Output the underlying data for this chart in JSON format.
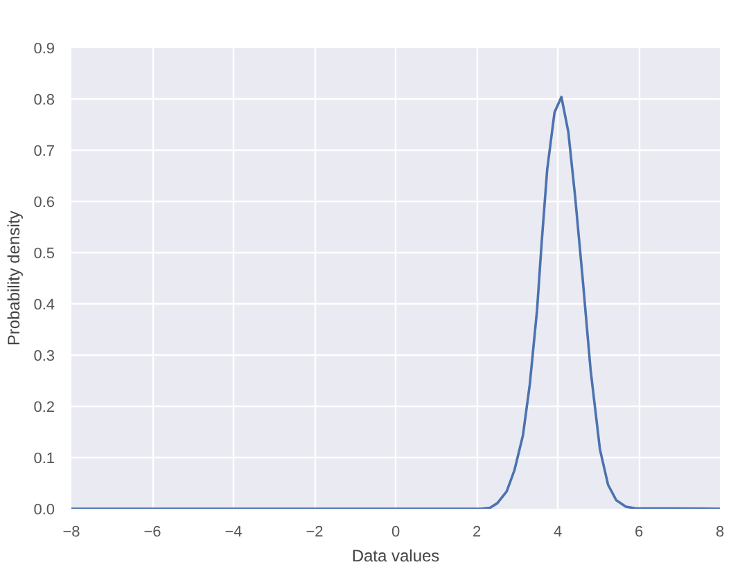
{
  "chart_data": {
    "type": "line",
    "xlabel": "Data values",
    "ylabel": "Probability density",
    "x": [
      -8,
      2.1,
      2.33,
      2.51,
      2.74,
      2.93,
      3.14,
      3.31,
      3.49,
      3.6,
      3.74,
      3.92,
      4.09,
      4.26,
      4.43,
      4.62,
      4.81,
      5.04,
      5.24,
      5.44,
      5.68,
      5.91,
      8
    ],
    "series": [
      {
        "color": "#4c72b0",
        "values": [
          0,
          0,
          0.002,
          0.011,
          0.034,
          0.075,
          0.143,
          0.243,
          0.389,
          0.517,
          0.663,
          0.774,
          0.804,
          0.736,
          0.608,
          0.444,
          0.271,
          0.116,
          0.047,
          0.017,
          0.004,
          0.001,
          0
        ]
      }
    ],
    "xlim": [
      -8,
      8
    ],
    "ylim": [
      0,
      0.9
    ],
    "xticks": [
      -8,
      -6,
      -4,
      -2,
      0,
      2,
      4,
      6,
      8
    ],
    "yticks": [
      {
        "value": 0,
        "label": "0.0"
      },
      0.1,
      0.2,
      0.3,
      0.4,
      0.5,
      0.6,
      0.7,
      0.8,
      0.9
    ],
    "grid": true,
    "line_style": "solid"
  }
}
